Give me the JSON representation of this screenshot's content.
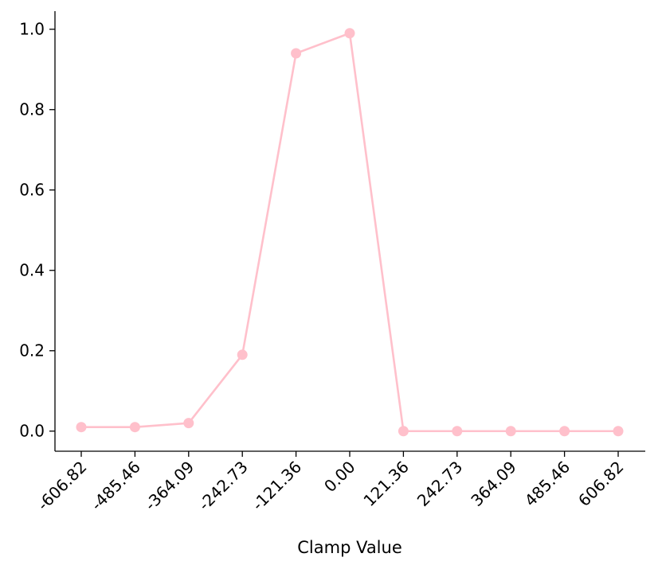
{
  "chart_data": {
    "type": "line",
    "title": "",
    "xlabel": "Clamp Value",
    "ylabel": "",
    "x": [
      "-606.82",
      "-485.46",
      "-364.09",
      "-242.73",
      "-121.36",
      "0.00",
      "121.36",
      "242.73",
      "364.09",
      "485.46",
      "606.82"
    ],
    "series": [
      {
        "values": [
          0.01,
          0.01,
          0.02,
          0.19,
          0.94,
          0.99,
          0.0,
          0.0,
          0.0,
          0.0,
          0.0
        ]
      }
    ],
    "yticks": [
      "0.0",
      "0.2",
      "0.4",
      "0.6",
      "0.8",
      "1.0"
    ],
    "ylim": [
      -0.05,
      1.045
    ],
    "grid": false,
    "line_color": "#ffc0cb",
    "x_tick_rotation_deg": 45
  }
}
